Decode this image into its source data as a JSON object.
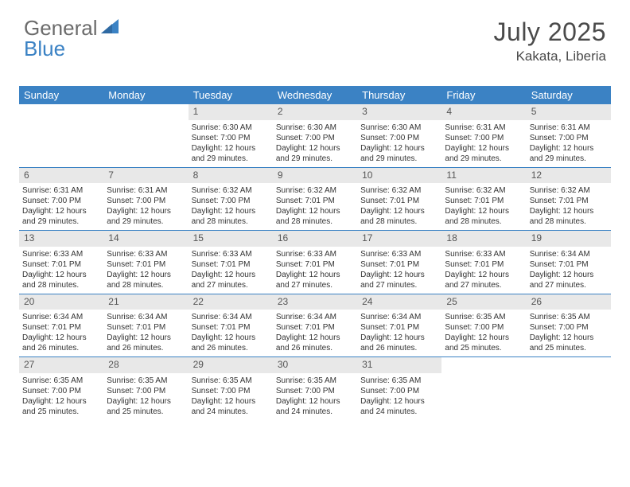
{
  "logo": {
    "text1": "General",
    "text2": "Blue"
  },
  "header": {
    "month": "July 2025",
    "location": "Kakata, Liberia"
  },
  "colors": {
    "accent": "#3b82c4",
    "dayNumBg": "#e8e8e8",
    "textDark": "#333333",
    "textGray": "#6b6b6b"
  },
  "calendar": {
    "columns": [
      "Sunday",
      "Monday",
      "Tuesday",
      "Wednesday",
      "Thursday",
      "Friday",
      "Saturday"
    ],
    "weeks": [
      [
        null,
        null,
        {
          "day": "1",
          "sunrise": "Sunrise: 6:30 AM",
          "sunset": "Sunset: 7:00 PM",
          "daylight": "Daylight: 12 hours and 29 minutes."
        },
        {
          "day": "2",
          "sunrise": "Sunrise: 6:30 AM",
          "sunset": "Sunset: 7:00 PM",
          "daylight": "Daylight: 12 hours and 29 minutes."
        },
        {
          "day": "3",
          "sunrise": "Sunrise: 6:30 AM",
          "sunset": "Sunset: 7:00 PM",
          "daylight": "Daylight: 12 hours and 29 minutes."
        },
        {
          "day": "4",
          "sunrise": "Sunrise: 6:31 AM",
          "sunset": "Sunset: 7:00 PM",
          "daylight": "Daylight: 12 hours and 29 minutes."
        },
        {
          "day": "5",
          "sunrise": "Sunrise: 6:31 AM",
          "sunset": "Sunset: 7:00 PM",
          "daylight": "Daylight: 12 hours and 29 minutes."
        }
      ],
      [
        {
          "day": "6",
          "sunrise": "Sunrise: 6:31 AM",
          "sunset": "Sunset: 7:00 PM",
          "daylight": "Daylight: 12 hours and 29 minutes."
        },
        {
          "day": "7",
          "sunrise": "Sunrise: 6:31 AM",
          "sunset": "Sunset: 7:00 PM",
          "daylight": "Daylight: 12 hours and 29 minutes."
        },
        {
          "day": "8",
          "sunrise": "Sunrise: 6:32 AM",
          "sunset": "Sunset: 7:00 PM",
          "daylight": "Daylight: 12 hours and 28 minutes."
        },
        {
          "day": "9",
          "sunrise": "Sunrise: 6:32 AM",
          "sunset": "Sunset: 7:01 PM",
          "daylight": "Daylight: 12 hours and 28 minutes."
        },
        {
          "day": "10",
          "sunrise": "Sunrise: 6:32 AM",
          "sunset": "Sunset: 7:01 PM",
          "daylight": "Daylight: 12 hours and 28 minutes."
        },
        {
          "day": "11",
          "sunrise": "Sunrise: 6:32 AM",
          "sunset": "Sunset: 7:01 PM",
          "daylight": "Daylight: 12 hours and 28 minutes."
        },
        {
          "day": "12",
          "sunrise": "Sunrise: 6:32 AM",
          "sunset": "Sunset: 7:01 PM",
          "daylight": "Daylight: 12 hours and 28 minutes."
        }
      ],
      [
        {
          "day": "13",
          "sunrise": "Sunrise: 6:33 AM",
          "sunset": "Sunset: 7:01 PM",
          "daylight": "Daylight: 12 hours and 28 minutes."
        },
        {
          "day": "14",
          "sunrise": "Sunrise: 6:33 AM",
          "sunset": "Sunset: 7:01 PM",
          "daylight": "Daylight: 12 hours and 28 minutes."
        },
        {
          "day": "15",
          "sunrise": "Sunrise: 6:33 AM",
          "sunset": "Sunset: 7:01 PM",
          "daylight": "Daylight: 12 hours and 27 minutes."
        },
        {
          "day": "16",
          "sunrise": "Sunrise: 6:33 AM",
          "sunset": "Sunset: 7:01 PM",
          "daylight": "Daylight: 12 hours and 27 minutes."
        },
        {
          "day": "17",
          "sunrise": "Sunrise: 6:33 AM",
          "sunset": "Sunset: 7:01 PM",
          "daylight": "Daylight: 12 hours and 27 minutes."
        },
        {
          "day": "18",
          "sunrise": "Sunrise: 6:33 AM",
          "sunset": "Sunset: 7:01 PM",
          "daylight": "Daylight: 12 hours and 27 minutes."
        },
        {
          "day": "19",
          "sunrise": "Sunrise: 6:34 AM",
          "sunset": "Sunset: 7:01 PM",
          "daylight": "Daylight: 12 hours and 27 minutes."
        }
      ],
      [
        {
          "day": "20",
          "sunrise": "Sunrise: 6:34 AM",
          "sunset": "Sunset: 7:01 PM",
          "daylight": "Daylight: 12 hours and 26 minutes."
        },
        {
          "day": "21",
          "sunrise": "Sunrise: 6:34 AM",
          "sunset": "Sunset: 7:01 PM",
          "daylight": "Daylight: 12 hours and 26 minutes."
        },
        {
          "day": "22",
          "sunrise": "Sunrise: 6:34 AM",
          "sunset": "Sunset: 7:01 PM",
          "daylight": "Daylight: 12 hours and 26 minutes."
        },
        {
          "day": "23",
          "sunrise": "Sunrise: 6:34 AM",
          "sunset": "Sunset: 7:01 PM",
          "daylight": "Daylight: 12 hours and 26 minutes."
        },
        {
          "day": "24",
          "sunrise": "Sunrise: 6:34 AM",
          "sunset": "Sunset: 7:01 PM",
          "daylight": "Daylight: 12 hours and 26 minutes."
        },
        {
          "day": "25",
          "sunrise": "Sunrise: 6:35 AM",
          "sunset": "Sunset: 7:00 PM",
          "daylight": "Daylight: 12 hours and 25 minutes."
        },
        {
          "day": "26",
          "sunrise": "Sunrise: 6:35 AM",
          "sunset": "Sunset: 7:00 PM",
          "daylight": "Daylight: 12 hours and 25 minutes."
        }
      ],
      [
        {
          "day": "27",
          "sunrise": "Sunrise: 6:35 AM",
          "sunset": "Sunset: 7:00 PM",
          "daylight": "Daylight: 12 hours and 25 minutes."
        },
        {
          "day": "28",
          "sunrise": "Sunrise: 6:35 AM",
          "sunset": "Sunset: 7:00 PM",
          "daylight": "Daylight: 12 hours and 25 minutes."
        },
        {
          "day": "29",
          "sunrise": "Sunrise: 6:35 AM",
          "sunset": "Sunset: 7:00 PM",
          "daylight": "Daylight: 12 hours and 24 minutes."
        },
        {
          "day": "30",
          "sunrise": "Sunrise: 6:35 AM",
          "sunset": "Sunset: 7:00 PM",
          "daylight": "Daylight: 12 hours and 24 minutes."
        },
        {
          "day": "31",
          "sunrise": "Sunrise: 6:35 AM",
          "sunset": "Sunset: 7:00 PM",
          "daylight": "Daylight: 12 hours and 24 minutes."
        },
        null,
        null
      ]
    ]
  }
}
